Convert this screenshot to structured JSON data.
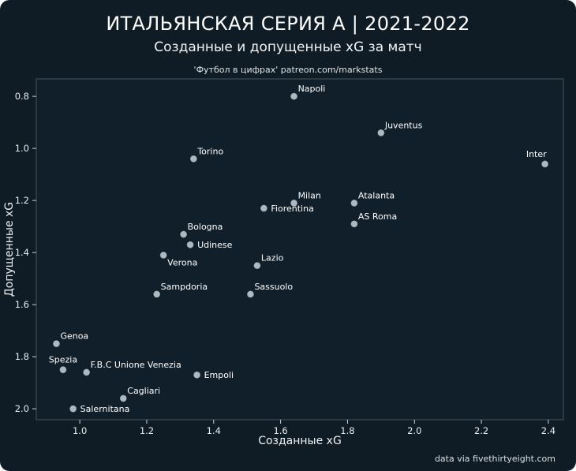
{
  "page": {
    "background": "#0f1c26",
    "text_color": "#ffffff",
    "accent_point_color": "#a9bac2"
  },
  "header": {
    "title": "ИТАЛЬЯНСКАЯ СЕРИЯ А | 2021-2022",
    "subtitle": "Созданные и допущенные xG за матч",
    "caption": "'Футбол в цифрах' patreon.com/markstats"
  },
  "footer": {
    "credit": "data via fivethirtyeight.com"
  },
  "chart_data": {
    "type": "scatter",
    "title": "ИТАЛЬЯНСКАЯ СЕРИЯ А | 2021-2022",
    "subtitle": "Созданные и допущенные xG за матч",
    "xlabel": "Созданные xG",
    "ylabel": "Допущенные xG",
    "x_ticks": [
      "1.0",
      "1.2",
      "1.4",
      "1.6",
      "1.8",
      "2.0",
      "2.2",
      "2.4"
    ],
    "y_ticks": [
      "0.8",
      "1.0",
      "1.2",
      "1.4",
      "1.6",
      "1.8",
      "2.0"
    ],
    "x_domain": [
      0.87,
      2.445
    ],
    "y_domain": [
      0.733,
      2.042
    ],
    "y_inverted": true,
    "grid": false,
    "legend": "none",
    "point_color": "#a9bac2",
    "points": [
      {
        "label": "Napoli",
        "x": 1.64,
        "y": 0.8,
        "label_pos": "above-right"
      },
      {
        "label": "Juventus",
        "x": 1.9,
        "y": 0.94,
        "label_pos": "above-right"
      },
      {
        "label": "Torino",
        "x": 1.34,
        "y": 1.04,
        "label_pos": "above-right"
      },
      {
        "label": "Inter",
        "x": 2.39,
        "y": 1.06,
        "label_pos": "above-left"
      },
      {
        "label": "Milan",
        "x": 1.64,
        "y": 1.21,
        "label_pos": "above-right"
      },
      {
        "label": "Atalanta",
        "x": 1.82,
        "y": 1.21,
        "label_pos": "above-right"
      },
      {
        "label": "Fiorentina",
        "x": 1.55,
        "y": 1.23,
        "label_pos": "right"
      },
      {
        "label": "AS Roma",
        "x": 1.82,
        "y": 1.29,
        "label_pos": "above-right"
      },
      {
        "label": "Bologna",
        "x": 1.31,
        "y": 1.33,
        "label_pos": "above-right"
      },
      {
        "label": "Udinese",
        "x": 1.33,
        "y": 1.37,
        "label_pos": "right"
      },
      {
        "label": "Verona",
        "x": 1.25,
        "y": 1.41,
        "label_pos": "below-right"
      },
      {
        "label": "Lazio",
        "x": 1.53,
        "y": 1.45,
        "label_pos": "above-right"
      },
      {
        "label": "Sampdoria",
        "x": 1.23,
        "y": 1.56,
        "label_pos": "above-right"
      },
      {
        "label": "Sassuolo",
        "x": 1.51,
        "y": 1.56,
        "label_pos": "above-right"
      },
      {
        "label": "Genoa",
        "x": 0.93,
        "y": 1.75,
        "label_pos": "above-right"
      },
      {
        "label": "Spezia",
        "x": 0.95,
        "y": 1.85,
        "label_pos": "above"
      },
      {
        "label": "F.B.C Unione Venezia",
        "x": 1.02,
        "y": 1.86,
        "label_pos": "above-right"
      },
      {
        "label": "Empoli",
        "x": 1.35,
        "y": 1.87,
        "label_pos": "right"
      },
      {
        "label": "Cagliari",
        "x": 1.13,
        "y": 1.96,
        "label_pos": "above-right"
      },
      {
        "label": "Salernitana",
        "x": 0.98,
        "y": 2.0,
        "label_pos": "right"
      }
    ]
  }
}
